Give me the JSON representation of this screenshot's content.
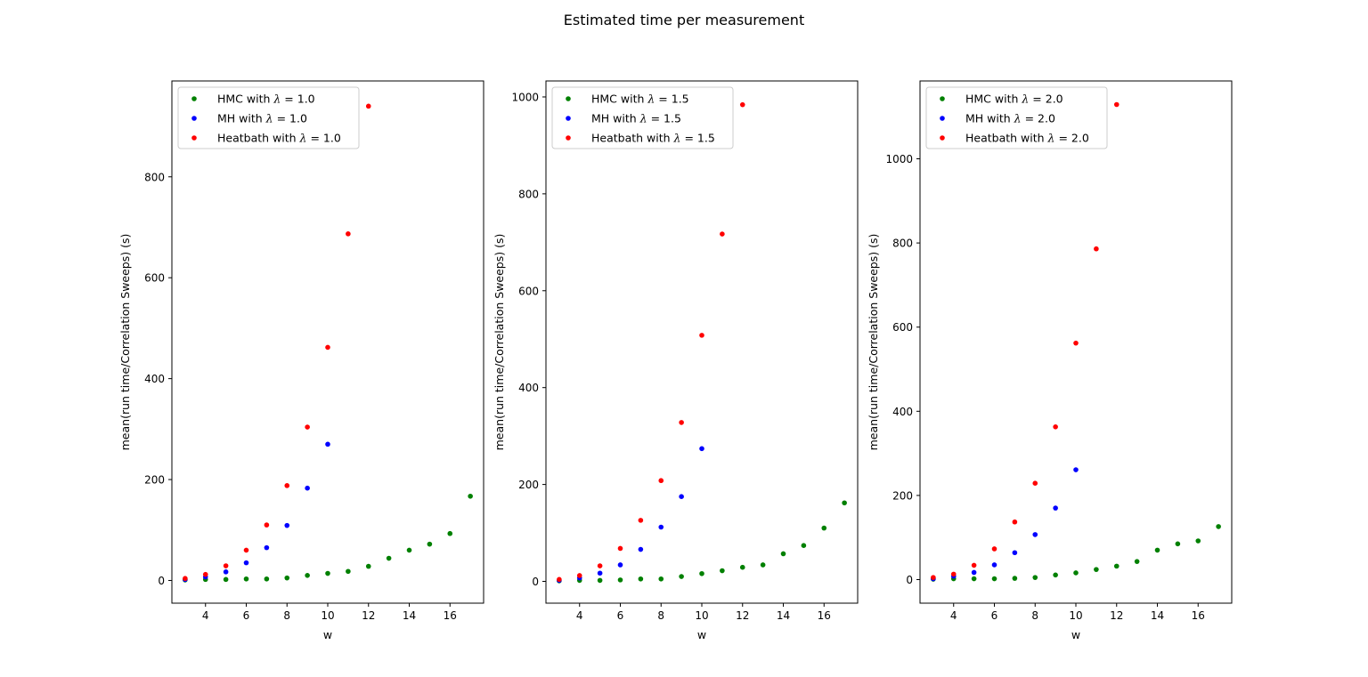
{
  "figure": {
    "title": "Estimated time per measurement"
  },
  "chart_data": [
    {
      "type": "scatter",
      "xlabel": "w",
      "ylabel": "mean(run time/Correlation Sweeps) (s)",
      "xlim": [
        2.35,
        17.65
      ],
      "ylim": [
        -45,
        990
      ],
      "xticks": [
        4,
        6,
        8,
        10,
        12,
        14,
        16
      ],
      "yticks": [
        0,
        200,
        400,
        600,
        800
      ],
      "legend_position": "top-left",
      "series": [
        {
          "name": "HMC with $\\lambda$ = 1.0",
          "label_prefix": "HMC with ",
          "label_suffix": " = 1.0",
          "color": "#008000",
          "x": [
            3,
            4,
            5,
            6,
            7,
            8,
            9,
            10,
            11,
            12,
            13,
            14,
            15,
            16,
            17
          ],
          "y": [
            1,
            2,
            2,
            3,
            3,
            5,
            10,
            14,
            18,
            28,
            44,
            60,
            72,
            93,
            167
          ]
        },
        {
          "name": "MH with $\\lambda$ = 1.0",
          "label_prefix": "MH with ",
          "label_suffix": " = 1.0",
          "color": "#0000ff",
          "x": [
            3,
            4,
            5,
            6,
            7,
            8,
            9,
            10
          ],
          "y": [
            2,
            7,
            17,
            35,
            65,
            109,
            183,
            270
          ]
        },
        {
          "name": "Heatbath with $\\lambda$ = 1.0",
          "label_prefix": "Heatbath with ",
          "label_suffix": " = 1.0",
          "color": "#ff0000",
          "x": [
            3,
            4,
            5,
            6,
            7,
            8,
            9,
            10,
            11,
            12
          ],
          "y": [
            4,
            12,
            29,
            60,
            110,
            188,
            304,
            462,
            687,
            940
          ]
        }
      ]
    },
    {
      "type": "scatter",
      "xlabel": "w",
      "ylabel": "mean(run time/Correlation Sweeps) (s)",
      "xlim": [
        2.35,
        17.65
      ],
      "ylim": [
        -45,
        1033
      ],
      "xticks": [
        4,
        6,
        8,
        10,
        12,
        14,
        16
      ],
      "yticks": [
        0,
        200,
        400,
        600,
        800,
        1000
      ],
      "legend_position": "top-left",
      "series": [
        {
          "name": "HMC with $\\lambda$ = 1.5",
          "label_prefix": "HMC with ",
          "label_suffix": " = 1.5",
          "color": "#008000",
          "x": [
            3,
            4,
            5,
            6,
            7,
            8,
            9,
            10,
            11,
            12,
            13,
            14,
            15,
            16,
            17
          ],
          "y": [
            1,
            2,
            2,
            3,
            5,
            5,
            10,
            16,
            22,
            29,
            34,
            57,
            74,
            110,
            162
          ]
        },
        {
          "name": "MH with $\\lambda$ = 1.5",
          "label_prefix": "MH with ",
          "label_suffix": " = 1.5",
          "color": "#0000ff",
          "x": [
            3,
            4,
            5,
            6,
            7,
            8,
            9,
            10
          ],
          "y": [
            2,
            7,
            17,
            34,
            66,
            112,
            175,
            274
          ]
        },
        {
          "name": "Heatbath with $\\lambda$ = 1.5",
          "label_prefix": "Heatbath with ",
          "label_suffix": " = 1.5",
          "color": "#ff0000",
          "x": [
            3,
            4,
            5,
            6,
            7,
            8,
            9,
            10,
            11,
            12
          ],
          "y": [
            4,
            12,
            32,
            68,
            126,
            208,
            328,
            508,
            717,
            984
          ]
        }
      ]
    },
    {
      "type": "scatter",
      "xlabel": "w",
      "ylabel": "mean(run time/Correlation Sweeps) (s)",
      "xlim": [
        2.35,
        17.65
      ],
      "ylim": [
        -56,
        1185
      ],
      "xticks": [
        4,
        6,
        8,
        10,
        12,
        14,
        16
      ],
      "yticks": [
        0,
        200,
        400,
        600,
        800,
        1000
      ],
      "legend_position": "top-left",
      "series": [
        {
          "name": "HMC with $\\lambda$ = 2.0",
          "label_prefix": "HMC with ",
          "label_suffix": " = 2.0",
          "color": "#008000",
          "x": [
            3,
            4,
            5,
            6,
            7,
            8,
            9,
            10,
            11,
            12,
            13,
            14,
            15,
            16,
            17
          ],
          "y": [
            1,
            2,
            2,
            2,
            3,
            5,
            11,
            16,
            24,
            32,
            43,
            70,
            85,
            92,
            126
          ]
        },
        {
          "name": "MH with $\\lambda$ = 2.0",
          "label_prefix": "MH with ",
          "label_suffix": " = 2.0",
          "color": "#0000ff",
          "x": [
            3,
            4,
            5,
            6,
            7,
            8,
            9,
            10
          ],
          "y": [
            2,
            8,
            17,
            35,
            64,
            107,
            170,
            261
          ]
        },
        {
          "name": "Heatbath with $\\lambda$ = 2.0",
          "label_prefix": "Heatbath with ",
          "label_suffix": " = 2.0",
          "color": "#ff0000",
          "x": [
            3,
            4,
            5,
            6,
            7,
            8,
            9,
            10,
            11,
            12
          ],
          "y": [
            5,
            13,
            34,
            73,
            137,
            229,
            363,
            562,
            786,
            1129
          ]
        }
      ]
    }
  ]
}
